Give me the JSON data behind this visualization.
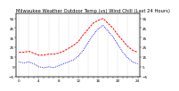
{
  "title": "Milwaukee Weather Outdoor Temp (vs) Wind Chill (Last 24 Hours)",
  "temp": [
    20,
    20,
    21,
    19,
    17,
    17,
    18,
    18,
    19,
    21,
    24,
    27,
    31,
    38,
    44,
    50,
    53,
    55,
    50,
    45,
    38,
    32,
    26,
    22,
    20
  ],
  "windchill": [
    10,
    9,
    10,
    8,
    5,
    4,
    5,
    4,
    6,
    8,
    10,
    12,
    16,
    22,
    30,
    38,
    44,
    48,
    42,
    36,
    28,
    20,
    14,
    10,
    8
  ],
  "temp_color": "#ff0000",
  "windchill_color": "#0000ff",
  "background": "#ffffff",
  "ylim": [
    -5,
    60
  ],
  "yticks": [
    -5,
    5,
    15,
    25,
    35,
    45,
    55
  ],
  "title_fontsize": 3.8,
  "tick_fontsize": 3.0,
  "grid_color": "#999999",
  "n_points": 25
}
